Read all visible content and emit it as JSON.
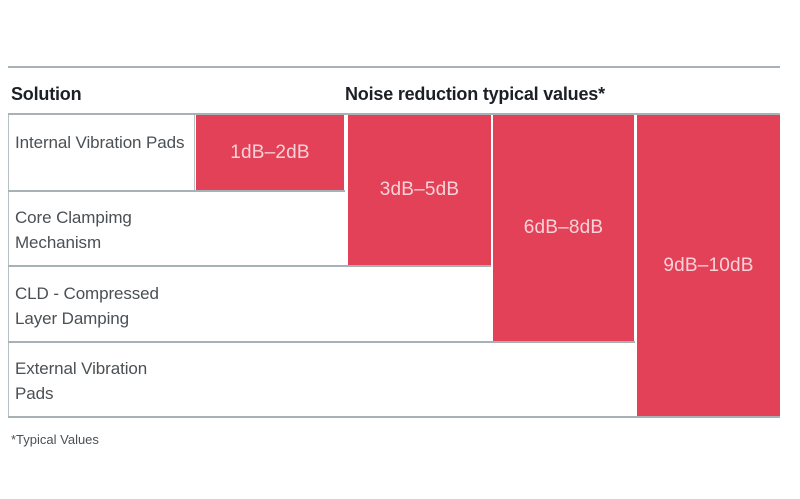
{
  "table": {
    "header": {
      "solution": "Solution",
      "values": "Noise reduction typical values*"
    },
    "rows": [
      {
        "label": "Internal Vibration Pads"
      },
      {
        "label": "Core Clampimg Mechanism"
      },
      {
        "label": "CLD - Compressed Layer Damping"
      },
      {
        "label": "External Vibration Pads"
      }
    ],
    "bars": [
      {
        "label": "1dB–2dB",
        "rows_spanned": 1
      },
      {
        "label": "3dB–5dB",
        "rows_spanned": 2
      },
      {
        "label": "6dB–8dB",
        "rows_spanned": 3
      },
      {
        "label": "9dB–10dB",
        "rows_spanned": 4
      }
    ]
  },
  "footnote": "*Typical Values",
  "colors": {
    "bar_fill": "#e24157",
    "bar_text": "#f8d2d8",
    "header_text": "#1c2025",
    "label_text": "#4b5054",
    "rule": "#a6b2b6",
    "background": "#ffffff"
  },
  "chart_data": {
    "type": "bar",
    "title": "Noise reduction typical values*",
    "categories": [
      "Internal Vibration Pads",
      "Core Clampimg Mechanism",
      "CLD - Compressed Layer Damping",
      "External Vibration Pads"
    ],
    "series": [
      {
        "name": "Noise reduction typical values",
        "values": [
          "1dB–2dB",
          "3dB–5dB",
          "6dB–8dB",
          "9dB–10dB"
        ]
      }
    ],
    "value_ranges_db": [
      [
        1,
        2
      ],
      [
        3,
        5
      ],
      [
        6,
        8
      ],
      [
        9,
        10
      ]
    ],
    "footnote": "*Typical Values",
    "layout_hint": "stepped/cumulative bars: each bar starts at the top row and extends down through its own solution row; bar color #e24157; thin light gray-blue horizontal rules step out with each row"
  }
}
